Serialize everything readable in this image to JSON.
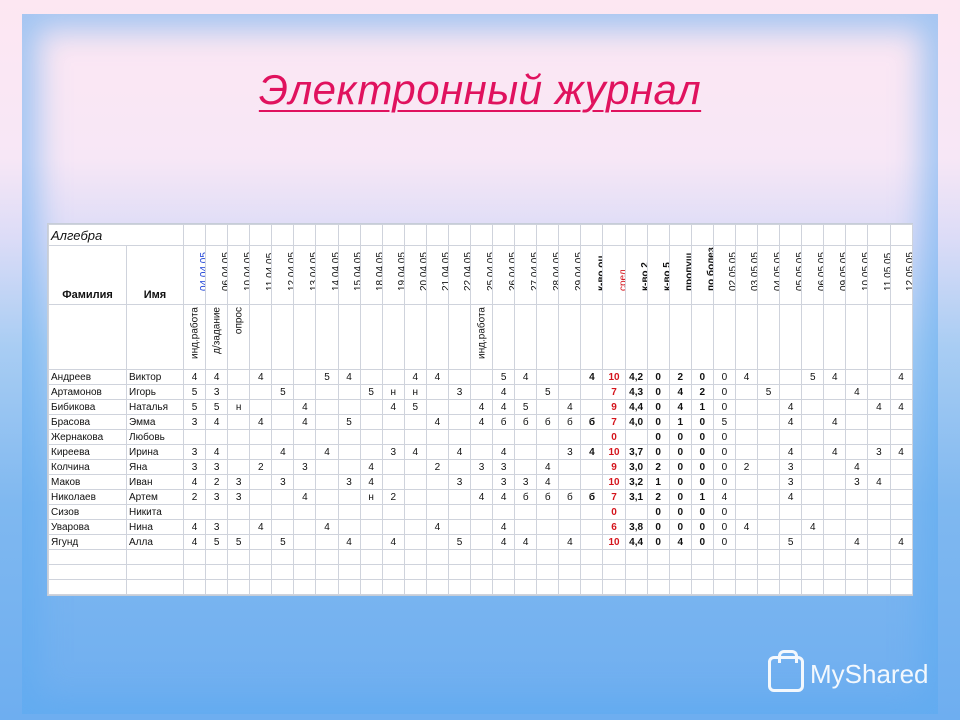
{
  "title": "Электронный журнал",
  "subject": "Алгебра",
  "headers": {
    "surname": "Фамилия",
    "name": "Имя",
    "cols": [
      "04.04.05",
      "06.04.05",
      "10.04.05",
      "11.04.05",
      "12.04.05",
      "13.04.05",
      "14.04.05",
      "15.04.05",
      "18.04.05",
      "19.04.05",
      "20.04.05",
      "21.04.05",
      "22.04.05",
      "25.04.05",
      "26.04.05",
      "27.04.05",
      "28.04.05",
      "29.04.05",
      "к-во оц",
      "сред",
      "к-во 2",
      "к-во 5",
      "пропущ",
      "по болез",
      "02.05.05",
      "03.05.05",
      "04.05.05",
      "05.05.05",
      "06.05.05",
      "09.05.05",
      "10.05.05",
      "11.05.05",
      "12.05.05"
    ],
    "sub": [
      "инд.работа",
      "д/задание",
      "опрос",
      "",
      "",
      "",
      "",
      "",
      "",
      "",
      "",
      "",
      "",
      "инд.работа",
      "",
      "",
      "",
      "",
      "",
      "",
      "",
      "",
      "",
      "",
      "",
      "",
      "",
      "",
      "",
      "",
      "",
      "",
      ""
    ]
  },
  "rows": [
    {
      "surname": "Андреев",
      "name": "Виктор",
      "cells": [
        "4",
        "4",
        "",
        "4",
        "",
        "",
        "5",
        "4",
        "",
        "",
        "4",
        "4",
        "",
        "",
        "5",
        "4",
        "",
        "",
        "4",
        "10",
        "4,2",
        "0",
        "2",
        "0",
        "0",
        "4",
        "",
        "",
        "5",
        "4",
        "",
        "",
        "4"
      ]
    },
    {
      "surname": "Артамонов",
      "name": "Игорь",
      "cells": [
        "5",
        "3",
        "",
        "",
        "5",
        "",
        "",
        "",
        "5",
        "н",
        "н",
        "",
        "3",
        "",
        "4",
        "",
        "5",
        "",
        "",
        "7",
        "4,3",
        "0",
        "4",
        "2",
        "0",
        "",
        "5",
        "",
        "",
        "",
        "4",
        "",
        ""
      ]
    },
    {
      "surname": "Бибикова",
      "name": "Наталья",
      "cells": [
        "5",
        "5",
        "н",
        "",
        "",
        "4",
        "",
        "",
        "",
        "4",
        "5",
        "",
        "",
        "4",
        "4",
        "5",
        "",
        "4",
        "",
        "9",
        "4,4",
        "0",
        "4",
        "1",
        "0",
        "",
        "",
        "4",
        "",
        "",
        "",
        "4",
        "4"
      ]
    },
    {
      "surname": "Брасова",
      "name": "Эмма",
      "cells": [
        "3",
        "4",
        "",
        "4",
        "",
        "4",
        "",
        "5",
        "",
        "",
        "",
        "4",
        "",
        "4",
        "б",
        "б",
        "б",
        "б",
        "б",
        "7",
        "4,0",
        "0",
        "1",
        "0",
        "5",
        "",
        "",
        "4",
        "",
        "4",
        "",
        "",
        ""
      ]
    },
    {
      "surname": "Жернакова",
      "name": "Любовь",
      "cells": [
        "",
        "",
        "",
        "",
        "",
        "",
        "",
        "",
        "",
        "",
        "",
        "",
        "",
        "",
        "",
        "",
        "",
        "",
        "",
        "0",
        "",
        "0",
        "0",
        "0",
        "0",
        "",
        "",
        "",
        "",
        "",
        "",
        "",
        ""
      ]
    },
    {
      "surname": "Киреева",
      "name": "Ирина",
      "cells": [
        "3",
        "4",
        "",
        "",
        "4",
        "",
        "4",
        "",
        "",
        "3",
        "4",
        "",
        "4",
        "",
        "4",
        "",
        "",
        "3",
        "4",
        "10",
        "3,7",
        "0",
        "0",
        "0",
        "0",
        "",
        "",
        "4",
        "",
        "4",
        "",
        "3",
        "4"
      ]
    },
    {
      "surname": "Колчина",
      "name": "Яна",
      "cells": [
        "3",
        "3",
        "",
        "2",
        "",
        "3",
        "",
        "",
        "4",
        "",
        "",
        "2",
        "",
        "3",
        "3",
        "",
        "4",
        "",
        "",
        "9",
        "3,0",
        "2",
        "0",
        "0",
        "0",
        "2",
        "",
        "3",
        "",
        "",
        "4",
        "",
        ""
      ]
    },
    {
      "surname": "Маков",
      "name": "Иван",
      "cells": [
        "4",
        "2",
        "3",
        "",
        "3",
        "",
        "",
        "3",
        "4",
        "",
        "",
        "",
        "3",
        "",
        "3",
        "3",
        "4",
        "",
        "",
        "10",
        "3,2",
        "1",
        "0",
        "0",
        "0",
        "",
        "",
        "3",
        "",
        "",
        "3",
        "4",
        ""
      ]
    },
    {
      "surname": "Николаев",
      "name": "Артем",
      "cells": [
        "2",
        "3",
        "3",
        "",
        "",
        "4",
        "",
        "",
        "н",
        "2",
        "",
        "",
        "",
        "4",
        "4",
        "б",
        "б",
        "б",
        "б",
        "7",
        "3,1",
        "2",
        "0",
        "1",
        "4",
        "",
        "",
        "4",
        "",
        "",
        "",
        "",
        ""
      ]
    },
    {
      "surname": "Сизов",
      "name": "Никита",
      "cells": [
        "",
        "",
        "",
        "",
        "",
        "",
        "",
        "",
        "",
        "",
        "",
        "",
        "",
        "",
        "",
        "",
        "",
        "",
        "",
        "0",
        "",
        "0",
        "0",
        "0",
        "0",
        "",
        "",
        "",
        "",
        "",
        "",
        "",
        ""
      ]
    },
    {
      "surname": "Уварова",
      "name": "Нина",
      "cells": [
        "4",
        "3",
        "",
        "4",
        "",
        "",
        "4",
        "",
        "",
        "",
        "",
        "4",
        "",
        "",
        "4",
        "",
        "",
        "",
        "",
        "6",
        "3,8",
        "0",
        "0",
        "0",
        "0",
        "4",
        "",
        "",
        "4",
        "",
        "",
        "",
        ""
      ]
    },
    {
      "surname": "Ягунд",
      "name": "Алла",
      "cells": [
        "4",
        "5",
        "5",
        "",
        "5",
        "",
        "",
        "4",
        "",
        "4",
        "",
        "",
        "5",
        "",
        "4",
        "4",
        "",
        "4",
        "",
        "10",
        "4,4",
        "0",
        "4",
        "0",
        "0",
        "",
        "",
        "5",
        "",
        "",
        "4",
        "",
        "4"
      ]
    }
  ],
  "empty_rows": 3,
  "watermark": "MyShared"
}
